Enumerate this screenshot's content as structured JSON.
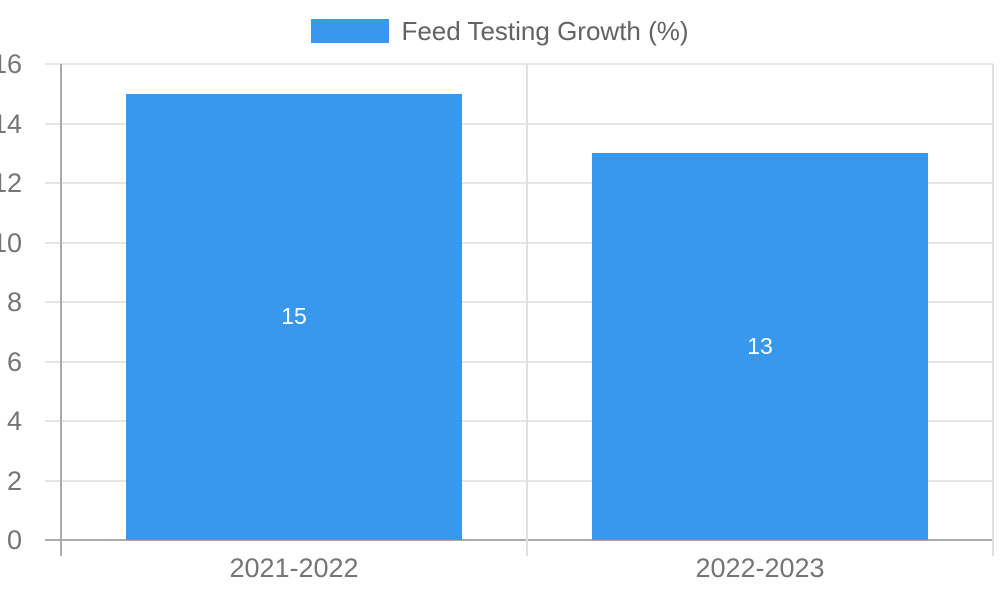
{
  "chart_data": {
    "type": "bar",
    "title": "",
    "legend": {
      "label": "Feed Testing Growth (%)",
      "position": "top"
    },
    "categories": [
      "2021-2022",
      "2022-2023"
    ],
    "values": [
      15,
      13
    ],
    "value_labels": [
      "15",
      "13"
    ],
    "ylim": [
      0,
      16
    ],
    "yticks": [
      0,
      2,
      4,
      6,
      8,
      10,
      12,
      14,
      16
    ],
    "grid": true,
    "colors": {
      "bar": "#3899ec",
      "gridline": "#e6e6e6",
      "separator": "#e0e0e0",
      "axis": "#ababab",
      "tick_label": "#757575",
      "legend_text": "#636363",
      "value_label": "#ffffff",
      "background": "#ffffff"
    }
  }
}
